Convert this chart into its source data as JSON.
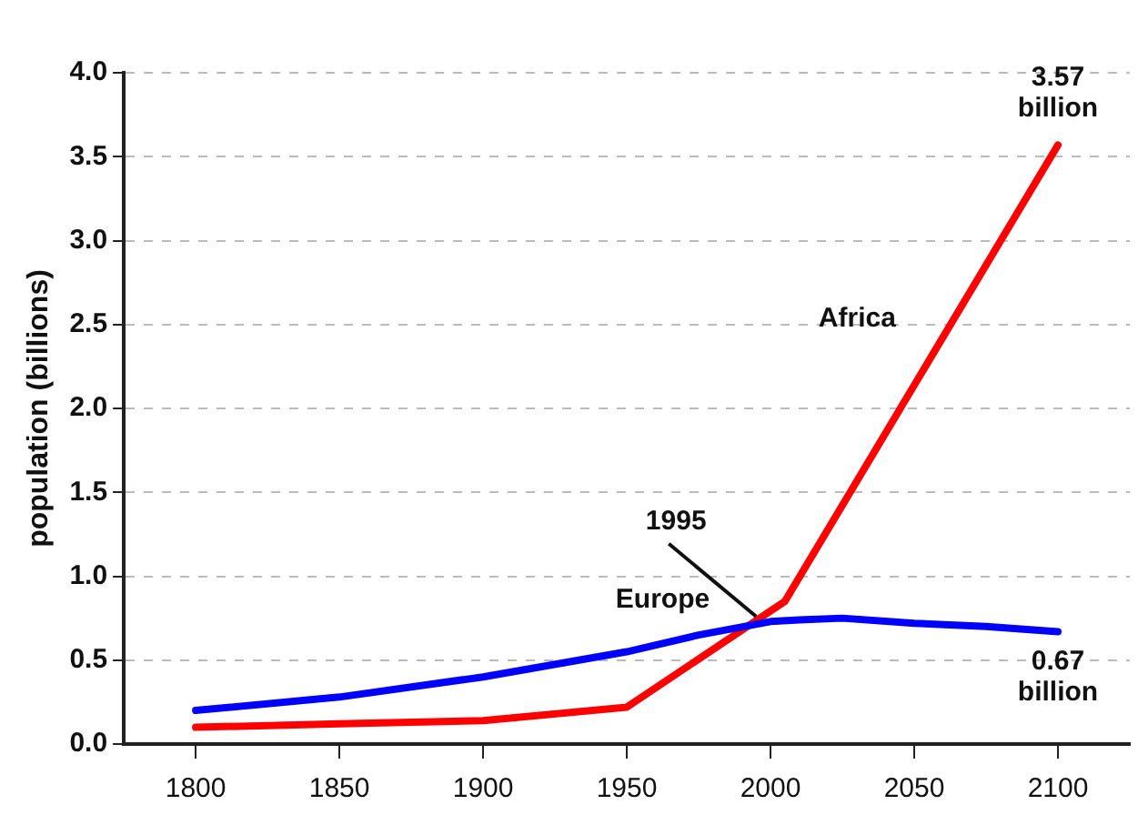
{
  "chart_data": {
    "type": "line",
    "ylabel": "population (billions)",
    "series": [
      {
        "name": "Europe",
        "color": "#0000ff",
        "x": [
          1800,
          1850,
          1900,
          1950,
          1975,
          2000,
          2010,
          2025,
          2050,
          2075,
          2100
        ],
        "values": [
          0.2,
          0.28,
          0.4,
          0.55,
          0.65,
          0.73,
          0.74,
          0.75,
          0.72,
          0.7,
          0.67
        ],
        "value_labels": [
          null,
          null,
          null,
          null,
          null,
          null,
          null,
          null,
          null,
          null,
          "0.67 billion"
        ]
      },
      {
        "name": "Africa",
        "color": "#ff0000",
        "x": [
          1800,
          1850,
          1900,
          1950,
          2005,
          2100
        ],
        "values": [
          0.1,
          0.12,
          0.14,
          0.22,
          0.85,
          3.57
        ],
        "value_labels": [
          null,
          null,
          null,
          null,
          null,
          "3.57 billion"
        ]
      }
    ],
    "xlim": [
      1775,
      2125
    ],
    "xticks": [
      1800,
      1850,
      1900,
      1950,
      2000,
      2050,
      2100
    ],
    "ylim": [
      0,
      4
    ],
    "yticks": [
      {
        "value": 0,
        "label": "0.0"
      },
      {
        "value": 0.5,
        "label": "0.5"
      },
      {
        "value": 1,
        "label": "1.0"
      },
      {
        "value": 1.5,
        "label": "1.5"
      },
      {
        "value": 2,
        "label": "2.0"
      },
      {
        "value": 2.5,
        "label": "2.5"
      },
      {
        "value": 3,
        "label": "3.0"
      },
      {
        "value": 3.5,
        "label": "3.5"
      },
      {
        "value": 4,
        "label": "4.0"
      }
    ],
    "grid": "y",
    "legend": false,
    "marker": "none",
    "line_style": "solid",
    "annotations": [
      {
        "text": "1995",
        "x": 1995,
        "y": 0.76
      }
    ]
  }
}
